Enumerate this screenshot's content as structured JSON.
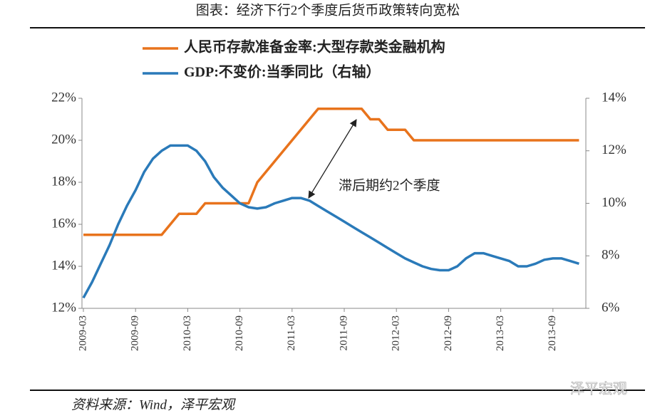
{
  "chart_data": {
    "type": "line",
    "title": "图表：经济下行2个季度后货币政策转向宽松",
    "source": "资料来源：Wind，泽平宏观",
    "annotation": "滞后期约2个季度",
    "watermark": "泽平宏观",
    "categories": [
      "2009-03",
      null,
      null,
      null,
      null,
      null,
      "2009-09",
      null,
      null,
      null,
      null,
      null,
      "2010-03",
      null,
      null,
      null,
      null,
      null,
      "2010-09",
      null,
      null,
      null,
      null,
      null,
      "2011-03",
      null,
      null,
      null,
      null,
      null,
      "2011-09",
      null,
      null,
      null,
      null,
      null,
      "2012-03",
      null,
      null,
      null,
      null,
      null,
      "2012-09",
      null,
      null,
      null,
      null,
      null,
      "2013-03",
      null,
      null,
      null,
      null,
      null,
      "2013-09",
      null,
      null,
      null
    ],
    "series": [
      {
        "name": "人民币存款准备金率:大型存款类金融机构",
        "color": "#e8731c",
        "values": [
          15.5,
          15.5,
          15.5,
          15.5,
          15.5,
          15.5,
          15.5,
          15.5,
          15.5,
          15.5,
          16,
          16.5,
          16.5,
          16.5,
          17,
          17,
          17,
          17,
          17,
          17,
          18,
          18.5,
          19,
          19.5,
          20,
          20.5,
          21,
          21.5,
          21.5,
          21.5,
          21.5,
          21.5,
          21.5,
          21,
          21,
          20.5,
          20.5,
          20.5,
          20,
          20,
          20,
          20,
          20,
          20,
          20,
          20,
          20,
          20,
          20,
          20,
          20,
          20,
          20,
          20,
          20,
          20,
          20,
          20
        ]
      },
      {
        "name": "GDP:不变价:当季同比（右轴）",
        "color": "#2a7ab9",
        "axis": "y2",
        "values": [
          6.4,
          7.0,
          7.7,
          8.4,
          9.2,
          9.9,
          10.5,
          11.2,
          11.7,
          12.0,
          12.2,
          12.2,
          12.2,
          12.0,
          11.6,
          11.0,
          10.6,
          10.3,
          10.0,
          9.85,
          9.8,
          9.85,
          10.0,
          10.1,
          10.2,
          10.2,
          10.1,
          9.9,
          9.7,
          9.5,
          9.3,
          9.1,
          8.9,
          8.7,
          8.5,
          8.3,
          8.1,
          7.9,
          7.75,
          7.6,
          7.5,
          7.45,
          7.45,
          7.6,
          7.9,
          8.1,
          8.1,
          8.0,
          7.9,
          7.8,
          7.6,
          7.6,
          7.7,
          7.85,
          7.9,
          7.9,
          7.8,
          7.7
        ]
      }
    ],
    "ylim": [
      12,
      22
    ],
    "yticks": [
      {
        "value": 12,
        "label": "12%"
      },
      {
        "value": 14,
        "label": "14%"
      },
      {
        "value": 16,
        "label": "16%"
      },
      {
        "value": 18,
        "label": "18%"
      },
      {
        "value": 20,
        "label": "20%"
      },
      {
        "value": 22,
        "label": "22%"
      }
    ],
    "y2lim": [
      6,
      14
    ],
    "y2ticks": [
      {
        "value": 6,
        "label": "6%"
      },
      {
        "value": 8,
        "label": "8%"
      },
      {
        "value": 10,
        "label": "10%"
      },
      {
        "value": 12,
        "label": "12%"
      },
      {
        "value": 14,
        "label": "14%"
      }
    ],
    "grid": false
  }
}
